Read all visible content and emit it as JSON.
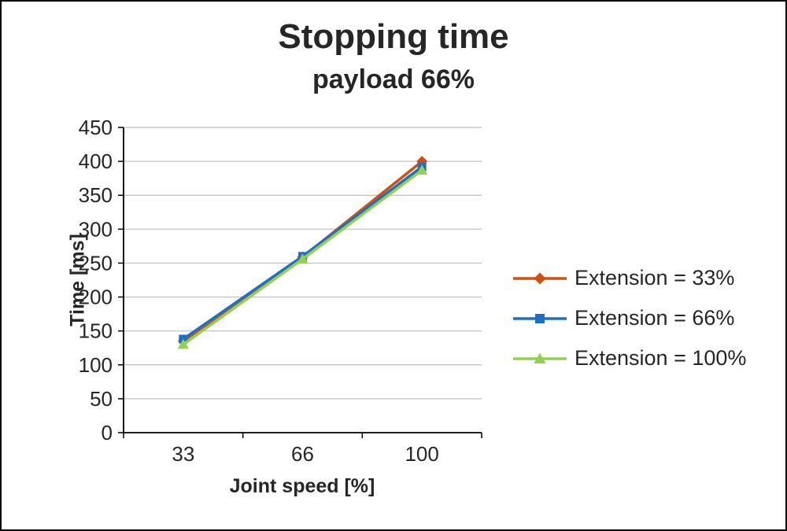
{
  "chart_data": {
    "type": "line",
    "title": "Stopping time",
    "subtitle": "payload 66%",
    "xlabel": "Joint speed [%]",
    "ylabel": "Time [ms]",
    "categories": [
      "33",
      "66",
      "100"
    ],
    "ylim": [
      0,
      450
    ],
    "ytick_step": 50,
    "grid": true,
    "legend_position": "right",
    "series": [
      {
        "name": "Extension = 33%",
        "color": "#D2500F",
        "marker": "diamond",
        "values": [
          135,
          259,
          400
        ]
      },
      {
        "name": "Extension = 66%",
        "color": "#1F6FC5",
        "marker": "square",
        "values": [
          138,
          260,
          392
        ]
      },
      {
        "name": "Extension = 100%",
        "color": "#92D050",
        "marker": "triangle",
        "values": [
          130,
          256,
          387
        ]
      }
    ]
  }
}
